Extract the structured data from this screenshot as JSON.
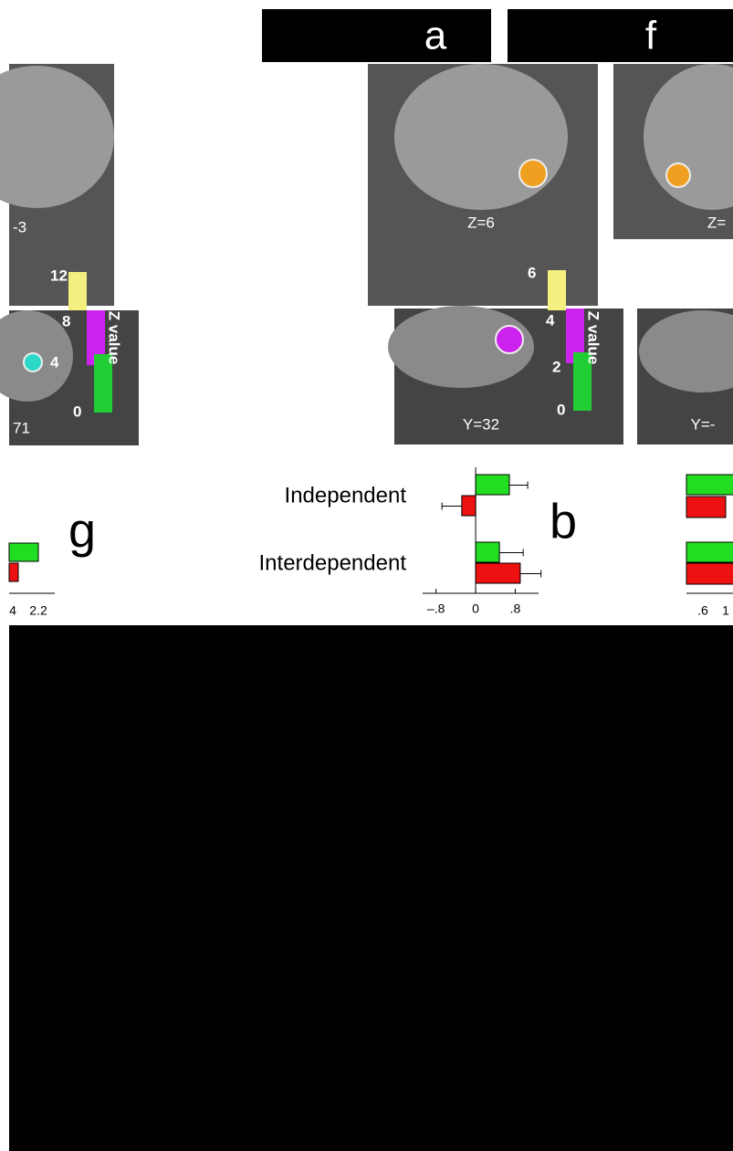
{
  "panels": {
    "left": {
      "slices": [
        "-3",
        "71"
      ],
      "colorbar": {
        "ticks": [
          "12",
          "8",
          "4",
          "0"
        ],
        "label": "Z value"
      }
    },
    "a": {
      "label": "a",
      "slices": [
        "Z=6",
        "Y=32"
      ],
      "colorbar": {
        "ticks": [
          "6",
          "4",
          "2",
          "0"
        ],
        "label": "Z value"
      }
    },
    "f": {
      "label": "f",
      "slices": [
        "Z=",
        "Y=-"
      ]
    },
    "g": {
      "label": "g",
      "ticks": [
        "4",
        "2.2"
      ]
    },
    "right": {
      "ticks": [
        ".6",
        "1"
      ]
    }
  },
  "chart_data": {
    "type": "bar",
    "label": "b",
    "categories": [
      "Independent",
      "Interdependent"
    ],
    "series": [
      {
        "color": "#22dd22",
        "values": [
          0.68,
          0.48
        ],
        "errors": [
          0.37,
          0.48
        ]
      },
      {
        "color": "#ee1111",
        "values": [
          -0.28,
          0.9
        ],
        "errors": [
          0.4,
          0.42
        ]
      }
    ],
    "xlim": [
      -1.07,
      1.27
    ],
    "xticks": [
      {
        "value": -0.8,
        "label": "–.8"
      },
      0,
      {
        "value": 0.8,
        "label": ".8"
      }
    ]
  }
}
